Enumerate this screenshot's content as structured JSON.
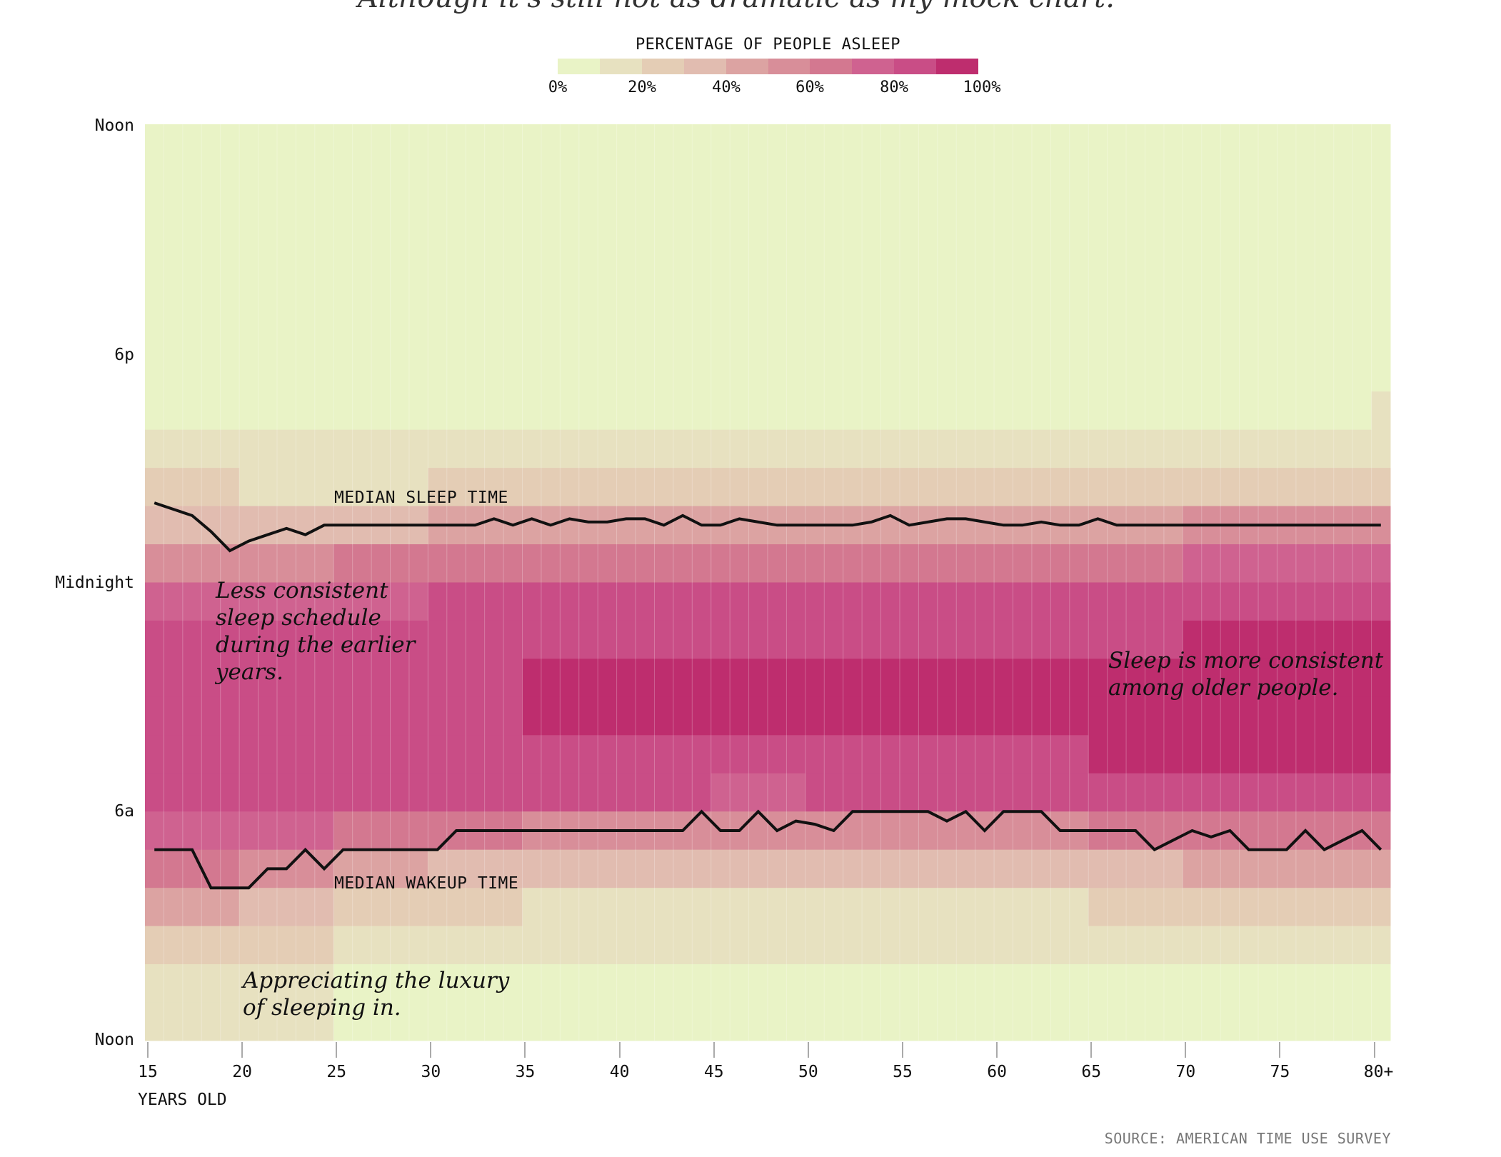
{
  "subtitle": "Although it's still not as dramatic as my mock chart.",
  "chart_data": {
    "type": "heatmap",
    "legend": {
      "title": "PERCENTAGE OF PEOPLE ASLEEP",
      "tick_labels": [
        "0%",
        "20%",
        "40%",
        "60%",
        "80%",
        "100%"
      ],
      "bins": [
        0,
        10,
        20,
        30,
        40,
        50,
        60,
        70,
        80,
        90,
        100
      ],
      "colors": [
        "#e9f3c6",
        "#e7e1c0",
        "#e4cdb5",
        "#e1bcb0",
        "#dca3a2",
        "#d88e99",
        "#d37890",
        "#cf6290",
        "#c94d86",
        "#be2d6e"
      ],
      "placement": "top"
    },
    "x_axis": {
      "title": "YEARS OLD",
      "range": [
        15,
        80
      ],
      "tick_values": [
        15,
        20,
        25,
        30,
        35,
        40,
        45,
        50,
        55,
        60,
        65,
        70,
        75,
        80
      ],
      "tick_labels": [
        "15",
        "20",
        "25",
        "30",
        "35",
        "40",
        "45",
        "50",
        "55",
        "60",
        "65",
        "70",
        "75",
        "80+"
      ]
    },
    "y_axis": {
      "range": [
        "12:00",
        "12:00 next day"
      ],
      "tick_labels": [
        "Noon",
        "6p",
        "Midnight",
        "6a",
        "Noon"
      ],
      "tick_hours_from_noon": [
        0,
        6,
        12,
        18,
        24
      ]
    },
    "heatmap": {
      "row_hours_from_noon": [
        0,
        1,
        2,
        3,
        4,
        5,
        6,
        7,
        8,
        9,
        10,
        11,
        12,
        13,
        14,
        15,
        16,
        17,
        18,
        19,
        20,
        21,
        22,
        23
      ],
      "groups": [
        {
          "ages": "15-19",
          "values": [
            5,
            5,
            5,
            5,
            5,
            6,
            7,
            9,
            12,
            20,
            38,
            58,
            75,
            85,
            88,
            88,
            88,
            85,
            78,
            62,
            40,
            25,
            16,
            10
          ]
        },
        {
          "ages": "20-24",
          "values": [
            4,
            4,
            4,
            4,
            5,
            5,
            6,
            8,
            10,
            17,
            32,
            52,
            72,
            84,
            88,
            88,
            88,
            86,
            78,
            58,
            38,
            24,
            16,
            11
          ]
        },
        {
          "ages": "25-29",
          "values": [
            3,
            3,
            3,
            3,
            4,
            4,
            5,
            7,
            10,
            18,
            38,
            60,
            78,
            86,
            89,
            89,
            88,
            84,
            68,
            45,
            25,
            15,
            9,
            6
          ]
        },
        {
          "ages": "30-34",
          "values": [
            3,
            3,
            3,
            3,
            4,
            4,
            5,
            7,
            10,
            20,
            42,
            64,
            80,
            87,
            89,
            89,
            88,
            82,
            60,
            36,
            20,
            12,
            7,
            5
          ]
        },
        {
          "ages": "35-39",
          "values": [
            3,
            3,
            3,
            3,
            4,
            4,
            5,
            7,
            11,
            22,
            45,
            66,
            82,
            88,
            90,
            90,
            89,
            80,
            55,
            32,
            18,
            10,
            6,
            4
          ]
        },
        {
          "ages": "40-44",
          "values": [
            3,
            3,
            3,
            3,
            4,
            4,
            5,
            7,
            11,
            22,
            45,
            66,
            82,
            88,
            90,
            90,
            89,
            80,
            55,
            32,
            18,
            10,
            6,
            4
          ]
        },
        {
          "ages": "45-49",
          "values": [
            3,
            3,
            3,
            3,
            4,
            4,
            5,
            7,
            11,
            22,
            46,
            67,
            82,
            88,
            90,
            90,
            89,
            79,
            54,
            31,
            17,
            10,
            6,
            4
          ]
        },
        {
          "ages": "50-54",
          "values": [
            3,
            3,
            3,
            3,
            4,
            4,
            5,
            7,
            11,
            22,
            46,
            67,
            83,
            88,
            90,
            90,
            89,
            80,
            54,
            31,
            17,
            10,
            6,
            4
          ]
        },
        {
          "ages": "55-59",
          "values": [
            3,
            3,
            3,
            3,
            4,
            4,
            5,
            7,
            11,
            23,
            46,
            67,
            83,
            89,
            90,
            90,
            89,
            80,
            55,
            32,
            18,
            10,
            6,
            4
          ]
        },
        {
          "ages": "60-64",
          "values": [
            3,
            3,
            3,
            3,
            4,
            5,
            6,
            8,
            12,
            23,
            47,
            68,
            83,
            89,
            90,
            90,
            89,
            81,
            57,
            34,
            19,
            11,
            6,
            4
          ]
        },
        {
          "ages": "65-69",
          "values": [
            4,
            4,
            4,
            4,
            5,
            5,
            6,
            8,
            12,
            24,
            48,
            68,
            83,
            88,
            90,
            90,
            90,
            84,
            62,
            38,
            22,
            12,
            7,
            5
          ]
        },
        {
          "ages": "70-74",
          "values": [
            4,
            4,
            4,
            4,
            5,
            6,
            7,
            9,
            13,
            26,
            50,
            70,
            85,
            90,
            91,
            91,
            90,
            86,
            65,
            40,
            24,
            14,
            8,
            5
          ]
        },
        {
          "ages": "75-79",
          "values": [
            4,
            4,
            4,
            4,
            5,
            6,
            7,
            9,
            14,
            27,
            51,
            71,
            85,
            90,
            91,
            91,
            90,
            86,
            64,
            40,
            24,
            14,
            8,
            5
          ]
        },
        {
          "ages": "80-80",
          "values": [
            5,
            5,
            5,
            5,
            6,
            7,
            8,
            10,
            15,
            28,
            52,
            72,
            86,
            90,
            91,
            91,
            90,
            85,
            62,
            40,
            24,
            14,
            8,
            6
          ]
        }
      ]
    },
    "series": [
      {
        "name": "MEDIAN SLEEP TIME",
        "type": "line",
        "color": "#111111",
        "ages_start": 15,
        "values": [
          "21:55",
          "22:05",
          "22:15",
          "22:40",
          "23:10",
          "22:55",
          "22:45",
          "22:35",
          "22:45",
          "22:30",
          "22:30",
          "22:30",
          "22:30",
          "22:30",
          "22:30",
          "22:30",
          "22:30",
          "22:30",
          "22:20",
          "22:30",
          "22:20",
          "22:30",
          "22:20",
          "22:25",
          "22:25",
          "22:20",
          "22:20",
          "22:30",
          "22:15",
          "22:30",
          "22:30",
          "22:20",
          "22:25",
          "22:30",
          "22:30",
          "22:30",
          "22:30",
          "22:30",
          "22:25",
          "22:15",
          "22:30",
          "22:25",
          "22:20",
          "22:20",
          "22:25",
          "22:30",
          "22:30",
          "22:25",
          "22:30",
          "22:30",
          "22:20",
          "22:30",
          "22:30",
          "22:30",
          "22:30",
          "22:30",
          "22:30",
          "22:30",
          "22:30",
          "22:30",
          "22:30",
          "22:30",
          "22:30",
          "22:30",
          "22:30",
          "22:30"
        ]
      },
      {
        "name": "MEDIAN WAKEUP TIME",
        "type": "line",
        "color": "#111111",
        "ages_start": 15,
        "values": [
          "07:00",
          "07:00",
          "07:00",
          "08:00",
          "08:00",
          "08:00",
          "07:30",
          "07:30",
          "07:00",
          "07:30",
          "07:00",
          "07:00",
          "07:00",
          "07:00",
          "07:00",
          "07:00",
          "06:30",
          "06:30",
          "06:30",
          "06:30",
          "06:30",
          "06:30",
          "06:30",
          "06:30",
          "06:30",
          "06:30",
          "06:30",
          "06:30",
          "06:30",
          "06:00",
          "06:30",
          "06:30",
          "06:00",
          "06:30",
          "06:15",
          "06:20",
          "06:30",
          "06:00",
          "06:00",
          "06:00",
          "06:00",
          "06:00",
          "06:15",
          "06:00",
          "06:30",
          "06:00",
          "06:00",
          "06:00",
          "06:30",
          "06:30",
          "06:30",
          "06:30",
          "06:30",
          "07:00",
          "06:45",
          "06:30",
          "06:40",
          "06:30",
          "07:00",
          "07:00",
          "07:00",
          "06:30",
          "07:00",
          "06:45",
          "06:30",
          "07:00"
        ]
      }
    ],
    "annotations": [
      "Less consistent\nsleep schedule\nduring the earlier\nyears.",
      "Sleep is more consistent\namong older people.",
      "Appreciating the luxury\nof sleeping in."
    ],
    "grid": false
  },
  "source": "SOURCE: AMERICAN TIME USE SURVEY"
}
